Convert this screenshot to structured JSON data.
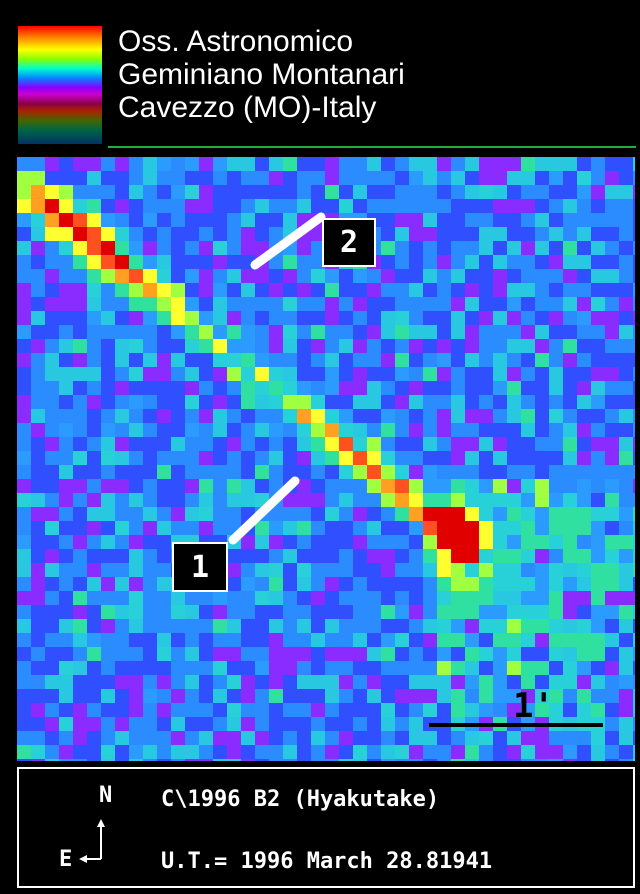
{
  "header": {
    "line1": "Oss. Astronomico",
    "line2": "Geminiano Montanari",
    "line3": "Cavezzo (MO)-Italy",
    "colors": {
      "text": "#ffffff",
      "rule": "#22aa44"
    }
  },
  "markers": {
    "label1": "1",
    "label2": "2"
  },
  "scale": {
    "label": "1'"
  },
  "footer": {
    "north": "N",
    "east": "E",
    "object": "C\\1996 B2 (Hyakutake)",
    "time": "U.T.= 1996 March 28.81941"
  }
}
